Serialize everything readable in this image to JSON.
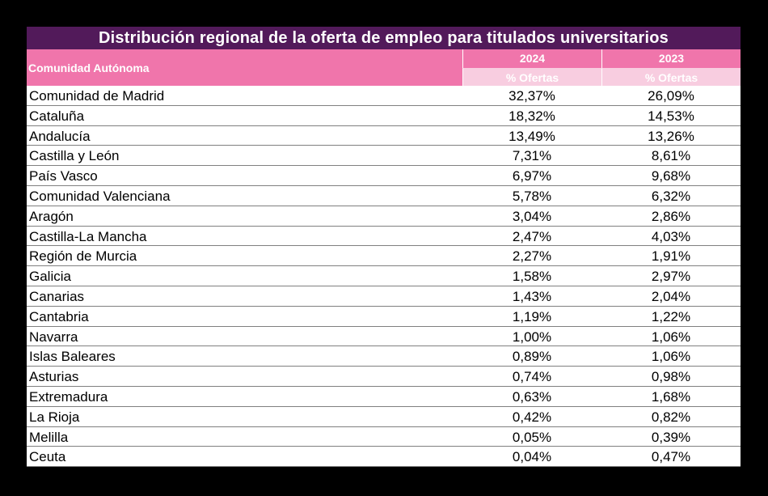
{
  "table": {
    "title": "Distribución regional de la oferta de empleo para titulados universitarios",
    "header": {
      "region_label": "Comunidad Autónoma",
      "years": [
        "2024",
        "2023"
      ],
      "sub_labels": [
        "% Ofertas",
        "% Ofertas"
      ]
    },
    "colors": {
      "title_bg": "#521a5a",
      "header_bg": "#f075ab",
      "subheader_bg": "#f8cde0",
      "row_border": "#808080"
    },
    "rows": [
      {
        "region": "Comunidad de Madrid",
        "y2024": "32,37%",
        "y2023": "26,09%"
      },
      {
        "region": "Cataluña",
        "y2024": "18,32%",
        "y2023": "14,53%"
      },
      {
        "region": "Andalucía",
        "y2024": "13,49%",
        "y2023": "13,26%"
      },
      {
        "region": "Castilla y León",
        "y2024": "7,31%",
        "y2023": "8,61%"
      },
      {
        "region": "País Vasco",
        "y2024": "6,97%",
        "y2023": "9,68%"
      },
      {
        "region": "Comunidad Valenciana",
        "y2024": "5,78%",
        "y2023": "6,32%"
      },
      {
        "region": "Aragón",
        "y2024": "3,04%",
        "y2023": "2,86%"
      },
      {
        "region": "Castilla-La Mancha",
        "y2024": "2,47%",
        "y2023": "4,03%"
      },
      {
        "region": "Región de Murcia",
        "y2024": "2,27%",
        "y2023": "1,91%"
      },
      {
        "region": "Galicia",
        "y2024": "1,58%",
        "y2023": "2,97%"
      },
      {
        "region": "Canarias",
        "y2024": "1,43%",
        "y2023": "2,04%"
      },
      {
        "region": "Cantabria",
        "y2024": "1,19%",
        "y2023": "1,22%"
      },
      {
        "region": "Navarra",
        "y2024": "1,00%",
        "y2023": "1,06%"
      },
      {
        "region": "Islas Baleares",
        "y2024": "0,89%",
        "y2023": "1,06%"
      },
      {
        "region": "Asturias",
        "y2024": "0,74%",
        "y2023": "0,98%"
      },
      {
        "region": "Extremadura",
        "y2024": "0,63%",
        "y2023": "1,68%"
      },
      {
        "region": "La Rioja",
        "y2024": "0,42%",
        "y2023": "0,82%"
      },
      {
        "region": "Melilla",
        "y2024": "0,05%",
        "y2023": "0,39%"
      },
      {
        "region": "Ceuta",
        "y2024": "0,04%",
        "y2023": "0,47%"
      }
    ]
  }
}
